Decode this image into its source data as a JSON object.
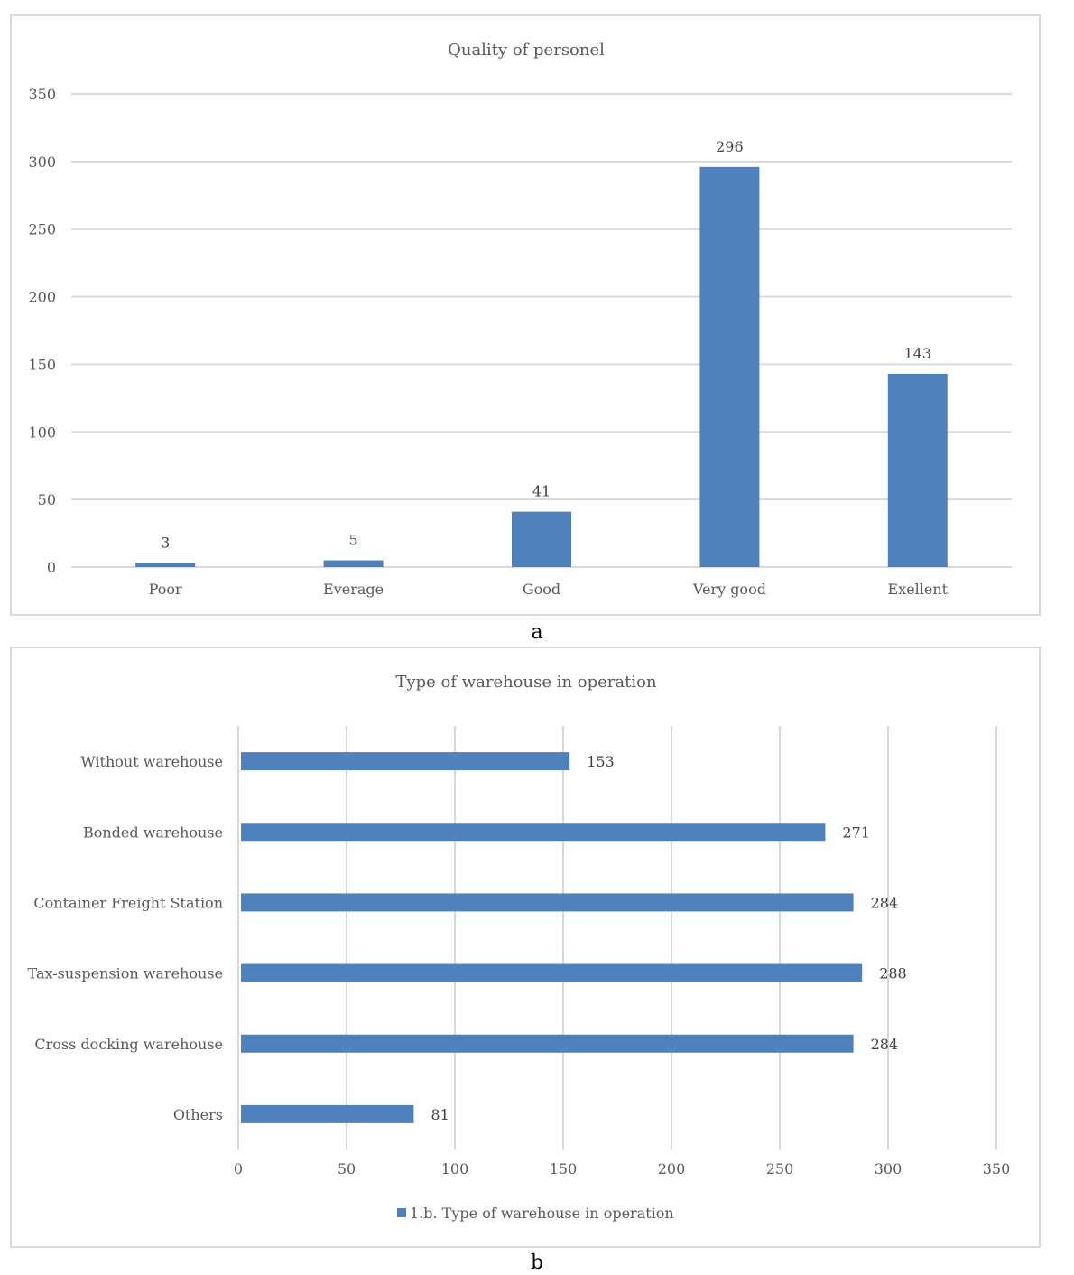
{
  "captions": {
    "a": "a",
    "b": "b"
  },
  "colors": {
    "bar": "#4f81bd",
    "grid": "#d9d9d9",
    "text": "#595959"
  },
  "chart_data": [
    {
      "type": "bar",
      "orientation": "vertical",
      "title": "Quality of personel",
      "categories": [
        "Poor",
        "Everage",
        "Good",
        "Very good",
        "Exellent"
      ],
      "values": [
        3,
        5,
        41,
        296,
        143
      ],
      "ylim": [
        0,
        350
      ],
      "yticks": [
        0,
        50,
        100,
        150,
        200,
        250,
        300,
        350
      ],
      "grid": true,
      "data_labels": true
    },
    {
      "type": "bar",
      "orientation": "horizontal",
      "title": "Type of warehouse in operation",
      "categories": [
        "Without warehouse",
        "Bonded warehouse",
        "Container Freight Station",
        "Tax-suspension warehouse",
        "Cross docking warehouse",
        "Others"
      ],
      "values": [
        153,
        271,
        284,
        288,
        284,
        81
      ],
      "xlim": [
        0,
        350
      ],
      "xticks": [
        0,
        50,
        100,
        150,
        200,
        250,
        300,
        350
      ],
      "grid": true,
      "data_labels": true,
      "legend": {
        "position": "bottom",
        "series_name": "1.b. Type of warehouse in operation"
      }
    }
  ]
}
